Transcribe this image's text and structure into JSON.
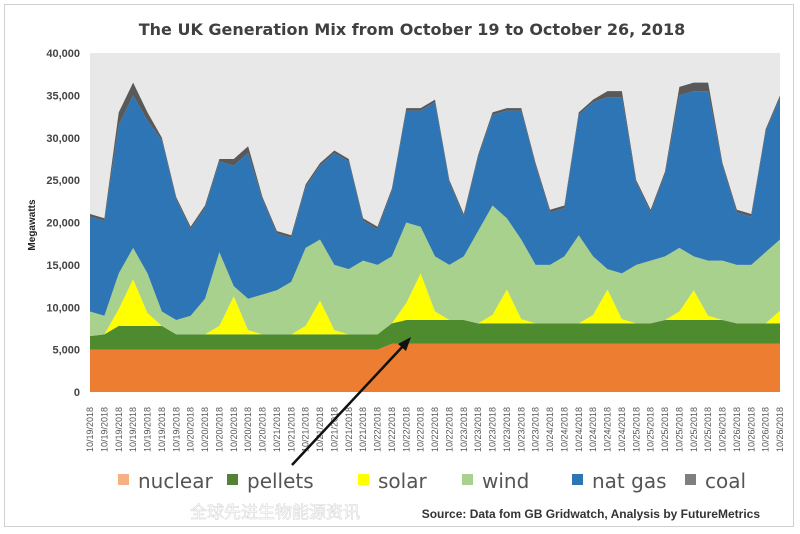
{
  "chart_data": {
    "type": "area",
    "stacked": true,
    "title": "The UK Generation Mix from October 19 to October 26, 2018",
    "ylabel": "Megawatts",
    "xlabel": "",
    "ylim": [
      0,
      40000
    ],
    "yticks": [
      "0",
      "5,000",
      "10,000",
      "15,000",
      "20,000",
      "25,000",
      "30,000",
      "35,000",
      "40,000"
    ],
    "grid": false,
    "legend_position": "bottom",
    "categories": [
      "10/19/2018",
      "10/19/2018",
      "10/19/2018",
      "10/19/2018",
      "10/19/2018",
      "10/19/2018",
      "10/19/2018",
      "10/20/2018",
      "10/20/2018",
      "10/20/2018",
      "10/20/2018",
      "10/20/2018",
      "10/20/2018",
      "10/21/2018",
      "10/21/2018",
      "10/21/2018",
      "10/21/2018",
      "10/21/2018",
      "10/21/2018",
      "10/21/2018",
      "10/22/2018",
      "10/22/2018",
      "10/22/2018",
      "10/22/2018",
      "10/22/2018",
      "10/22/2018",
      "10/23/2018",
      "10/23/2018",
      "10/23/2018",
      "10/23/2018",
      "10/23/2018",
      "10/23/2018",
      "10/24/2018",
      "10/24/2018",
      "10/24/2018",
      "10/24/2018",
      "10/24/2018",
      "10/24/2018",
      "10/25/2018",
      "10/25/2018",
      "10/25/2018",
      "10/25/2018",
      "10/25/2018",
      "10/25/2018",
      "10/26/2018",
      "10/26/2018",
      "10/26/2018",
      "10/26/2018",
      "10/26/2018"
    ],
    "series": [
      {
        "name": "nuclear",
        "color": "#ed7d31",
        "values": [
          5000,
          5000,
          5000,
          5000,
          5000,
          5000,
          5000,
          5000,
          5000,
          5000,
          5000,
          5000,
          5000,
          5000,
          5000,
          5000,
          5000,
          5000,
          5000,
          5000,
          5000,
          5700,
          5700,
          5700,
          5700,
          5700,
          5700,
          5700,
          5700,
          5700,
          5700,
          5700,
          5700,
          5700,
          5700,
          5700,
          5700,
          5700,
          5700,
          5700,
          5700,
          5700,
          5700,
          5700,
          5700,
          5700,
          5700,
          5700,
          5700
        ]
      },
      {
        "name": "pellets",
        "color": "#4e8a2e",
        "values": [
          1600,
          1800,
          2800,
          2800,
          2800,
          2800,
          1800,
          1800,
          1800,
          1800,
          1800,
          1800,
          1800,
          1800,
          1800,
          1800,
          1800,
          1800,
          1800,
          1800,
          1800,
          2400,
          2800,
          2800,
          2800,
          2800,
          2800,
          2400,
          2400,
          2400,
          2400,
          2400,
          2400,
          2400,
          2400,
          2400,
          2400,
          2400,
          2400,
          2400,
          2800,
          2800,
          2800,
          2800,
          2800,
          2400,
          2400,
          2400,
          2400
        ]
      },
      {
        "name": "solar",
        "color": "#ffff00",
        "values": [
          0,
          0,
          2000,
          5500,
          1500,
          0,
          0,
          0,
          0,
          1000,
          4500,
          500,
          0,
          0,
          0,
          1000,
          4000,
          500,
          0,
          0,
          0,
          0,
          2000,
          5500,
          1000,
          0,
          0,
          0,
          1000,
          4000,
          500,
          0,
          0,
          0,
          0,
          1000,
          4000,
          500,
          0,
          0,
          0,
          1000,
          3500,
          500,
          0,
          0,
          0,
          0,
          1500
        ]
      },
      {
        "name": "wind",
        "color": "#a9d18e",
        "values": [
          2900,
          2200,
          4200,
          3700,
          4700,
          1700,
          1700,
          2200,
          4200,
          8700,
          1200,
          3700,
          4700,
          5200,
          6200,
          9200,
          7200,
          7700,
          7700,
          8700,
          8200,
          7900,
          9500,
          5500,
          6500,
          6500,
          7500,
          10900,
          12900,
          8400,
          9400,
          6900,
          6900,
          7900,
          10400,
          6900,
          2400,
          5400,
          6900,
          7400,
          7500,
          7500,
          4000,
          6500,
          7000,
          6900,
          6900,
          8400,
          8400
        ]
      },
      {
        "name": "nat gas",
        "color": "#2e75b6",
        "values": [
          11200,
          11200,
          17500,
          18000,
          18000,
          20200,
          14200,
          10200,
          10700,
          10700,
          14200,
          17200,
          11200,
          6700,
          5200,
          7200,
          8700,
          13200,
          12700,
          4700,
          4200,
          7700,
          13200,
          13700,
          18200,
          9700,
          4700,
          8700,
          10700,
          12700,
          15200,
          11700,
          6200,
          5700,
          14200,
          18200,
          20300,
          20800,
          9700,
          5700,
          9700,
          18000,
          19500,
          20000,
          11200,
          6200,
          5700,
          14200,
          16700
        ]
      },
      {
        "name": "coal",
        "color": "#595959",
        "values": [
          300,
          300,
          1500,
          1500,
          1000,
          300,
          300,
          300,
          300,
          300,
          800,
          800,
          300,
          300,
          300,
          300,
          300,
          300,
          300,
          300,
          300,
          300,
          300,
          300,
          300,
          300,
          300,
          300,
          300,
          300,
          300,
          300,
          300,
          300,
          300,
          300,
          700,
          700,
          300,
          300,
          300,
          1000,
          1000,
          1000,
          300,
          300,
          300,
          300,
          300
        ]
      }
    ],
    "legend": [
      {
        "label": "nuclear",
        "color": "#f4b183"
      },
      {
        "label": "pellets",
        "color": "#548235"
      },
      {
        "label": "solar",
        "color": "#ffff00"
      },
      {
        "label": "wind",
        "color": "#a9d18e"
      },
      {
        "label": "nat gas",
        "color": "#2e75b6"
      },
      {
        "label": "coal",
        "color": "#7f7f7f"
      }
    ],
    "annotation": "arrow pointing to pellets layer",
    "source": "Source: Data fom GB Gridwatch, Analysis by FutureMetrics",
    "watermark": "全球先进生物能源资讯"
  }
}
